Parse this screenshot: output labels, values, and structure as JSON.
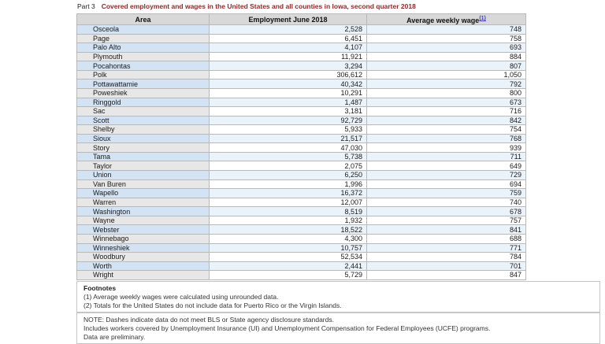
{
  "header": {
    "part_label": "Part 3",
    "title": "Covered employment and wages in the United States and all counties in Iowa, second quarter 2018"
  },
  "table": {
    "columns": [
      "Area",
      "Employment June 2018",
      "Average weekly wage"
    ],
    "wage_footnote_marker": "(1)",
    "rows": [
      {
        "area": "Osceola",
        "employment": "2,528",
        "wage": "748"
      },
      {
        "area": "Page",
        "employment": "6,451",
        "wage": "758"
      },
      {
        "area": "Palo Alto",
        "employment": "4,107",
        "wage": "693"
      },
      {
        "area": "Plymouth",
        "employment": "11,921",
        "wage": "884"
      },
      {
        "area": "Pocahontas",
        "employment": "3,294",
        "wage": "807"
      },
      {
        "area": "Polk",
        "employment": "306,612",
        "wage": "1,050"
      },
      {
        "area": "Pottawattamie",
        "employment": "40,342",
        "wage": "792"
      },
      {
        "area": "Poweshiek",
        "employment": "10,291",
        "wage": "800"
      },
      {
        "area": "Ringgold",
        "employment": "1,487",
        "wage": "673"
      },
      {
        "area": "Sac",
        "employment": "3,181",
        "wage": "716"
      },
      {
        "area": "Scott",
        "employment": "92,729",
        "wage": "842"
      },
      {
        "area": "Shelby",
        "employment": "5,933",
        "wage": "754"
      },
      {
        "area": "Sioux",
        "employment": "21,517",
        "wage": "768"
      },
      {
        "area": "Story",
        "employment": "47,030",
        "wage": "939"
      },
      {
        "area": "Tama",
        "employment": "5,738",
        "wage": "711"
      },
      {
        "area": "Taylor",
        "employment": "2,075",
        "wage": "649"
      },
      {
        "area": "Union",
        "employment": "6,250",
        "wage": "729"
      },
      {
        "area": "Van Buren",
        "employment": "1,996",
        "wage": "694"
      },
      {
        "area": "Wapello",
        "employment": "16,372",
        "wage": "759"
      },
      {
        "area": "Warren",
        "employment": "12,007",
        "wage": "740"
      },
      {
        "area": "Washington",
        "employment": "8,519",
        "wage": "678"
      },
      {
        "area": "Wayne",
        "employment": "1,932",
        "wage": "757"
      },
      {
        "area": "Webster",
        "employment": "18,522",
        "wage": "841"
      },
      {
        "area": "Winnebago",
        "employment": "4,300",
        "wage": "688"
      },
      {
        "area": "Winneshiek",
        "employment": "10,757",
        "wage": "771"
      },
      {
        "area": "Woodbury",
        "employment": "52,534",
        "wage": "784"
      },
      {
        "area": "Worth",
        "employment": "2,441",
        "wage": "701"
      },
      {
        "area": "Wright",
        "employment": "5,729",
        "wage": "847"
      }
    ]
  },
  "footnotes": {
    "heading": "Footnotes",
    "items": [
      "(1) Average weekly wages were calculated using unrounded data.",
      "(2) Totals for the United States do not include data for Puerto Rico or the Virgin Islands."
    ]
  },
  "note": {
    "lines": [
      "NOTE: Dashes indicate data do not meet BLS or State agency disclosure standards.",
      "Includes workers covered by Unemployment Insurance (UI) and Unemployment Compensation for Federal Employees (UCFE) programs.",
      "Data are preliminary."
    ]
  },
  "colors": {
    "title_text": "#8f2a26",
    "header_row_bg": "#d8d8d8",
    "odd_area_bg": "#d3e3f4",
    "odd_data_bg": "#eaf2fa",
    "even_area_bg": "#e7e7e7",
    "even_data_bg": "#ffffff",
    "footnote_link": "#3b3bc4"
  },
  "chart_data": {
    "type": "table",
    "title": "Covered employment and wages in the United States and all counties in Iowa, second quarter 2018",
    "columns": [
      "Area",
      "Employment June 2018",
      "Average weekly wage"
    ],
    "rows": [
      [
        "Osceola",
        2528,
        748
      ],
      [
        "Page",
        6451,
        758
      ],
      [
        "Palo Alto",
        4107,
        693
      ],
      [
        "Plymouth",
        11921,
        884
      ],
      [
        "Pocahontas",
        3294,
        807
      ],
      [
        "Polk",
        306612,
        1050
      ],
      [
        "Pottawattamie",
        40342,
        792
      ],
      [
        "Poweshiek",
        10291,
        800
      ],
      [
        "Ringgold",
        1487,
        673
      ],
      [
        "Sac",
        3181,
        716
      ],
      [
        "Scott",
        92729,
        842
      ],
      [
        "Shelby",
        5933,
        754
      ],
      [
        "Sioux",
        21517,
        768
      ],
      [
        "Story",
        47030,
        939
      ],
      [
        "Tama",
        5738,
        711
      ],
      [
        "Taylor",
        2075,
        649
      ],
      [
        "Union",
        6250,
        729
      ],
      [
        "Van Buren",
        1996,
        694
      ],
      [
        "Wapello",
        16372,
        759
      ],
      [
        "Warren",
        12007,
        740
      ],
      [
        "Washington",
        8519,
        678
      ],
      [
        "Wayne",
        1932,
        757
      ],
      [
        "Webster",
        18522,
        841
      ],
      [
        "Winnebago",
        4300,
        688
      ],
      [
        "Winneshiek",
        10757,
        771
      ],
      [
        "Woodbury",
        52534,
        784
      ],
      [
        "Worth",
        2441,
        701
      ],
      [
        "Wright",
        5729,
        847
      ]
    ]
  }
}
